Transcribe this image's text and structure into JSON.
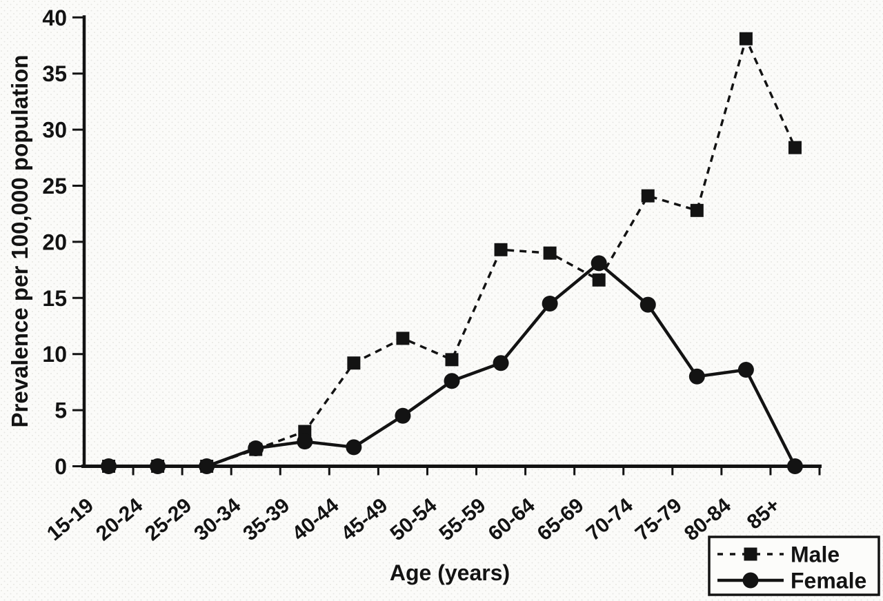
{
  "figure": {
    "ink_color": "#131313",
    "background_color": "#fbfbf9",
    "halftone_dot_color": "#e7e7e3",
    "legend_background": "#fcfcfa"
  },
  "chart_data": {
    "type": "line",
    "title": "",
    "xlabel": "Age (years)",
    "ylabel": "Prevalence per 100,000 population",
    "categories": [
      "15-19",
      "20-24",
      "25-29",
      "30-34",
      "35-39",
      "40-44",
      "45-49",
      "50-54",
      "55-59",
      "60-64",
      "65-69",
      "70-74",
      "75-79",
      "80-84",
      "85+"
    ],
    "series": [
      {
        "name": "Male",
        "line_style": "dashed",
        "marker": "square",
        "values": [
          0,
          0,
          0,
          1.5,
          3.1,
          9.2,
          11.4,
          9.5,
          19.3,
          19.0,
          16.6,
          24.1,
          22.8,
          38.1,
          28.4
        ]
      },
      {
        "name": "Female",
        "line_style": "solid",
        "marker": "circle",
        "values": [
          0,
          0,
          0,
          1.6,
          2.2,
          1.7,
          4.5,
          7.6,
          9.2,
          14.5,
          18.1,
          14.4,
          8.0,
          8.6,
          0
        ]
      }
    ],
    "ylim": [
      0,
      40
    ],
    "yticks": [
      0,
      5,
      10,
      15,
      20,
      25,
      30,
      35,
      40
    ],
    "grid": false,
    "legend": {
      "position": "bottom-right"
    }
  }
}
